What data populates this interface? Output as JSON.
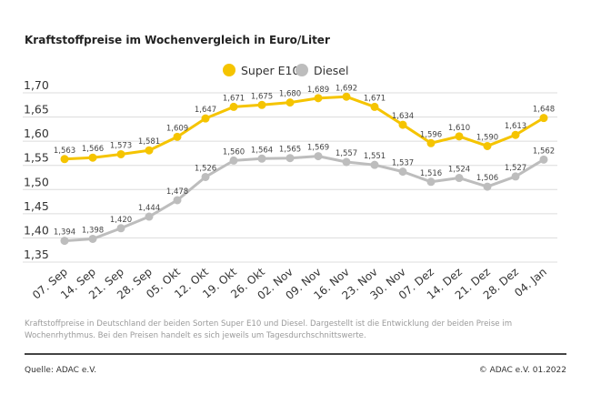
{
  "title": "Kraftstoffpreise im Wochenvergleich in Euro/Liter",
  "caption": "Kraftstoffpreise in Deutschland der beiden Sorten Super E10 und Diesel. Dargestellt ist die Entwicklung der beiden Preise im Wochenrhythmus. Bei den Preisen handelt es sich jeweils um Tagesdurchschnittswerte.",
  "source": "Quelle: ADAC e.V.",
  "copyright": "© ADAC e.V. 01.2022",
  "chart_data": {
    "type": "line",
    "title": "Kraftstoffpreise im Wochenvergleich in Euro/Liter",
    "categories": [
      "07. Sep",
      "14. Sep",
      "21. Sep",
      "28. Sep",
      "05. Okt",
      "12. Okt",
      "19. Okt",
      "26. Okt",
      "02. Nov",
      "09. Nov",
      "16. Nov",
      "23. Nov",
      "30. Nov",
      "07. Dez",
      "14. Dez",
      "21. Dez",
      "28. Dez",
      "04. Jan"
    ],
    "series": [
      {
        "name": "Super E10",
        "color": "#f5c400",
        "values": [
          1.563,
          1.566,
          1.573,
          1.581,
          1.609,
          1.647,
          1.671,
          1.675,
          1.68,
          1.689,
          1.692,
          1.671,
          1.634,
          1.596,
          1.61,
          1.59,
          1.613,
          1.648
        ]
      },
      {
        "name": "Diesel",
        "color": "#bdbdbd",
        "values": [
          1.394,
          1.398,
          1.42,
          1.444,
          1.478,
          1.526,
          1.56,
          1.564,
          1.565,
          1.569,
          1.557,
          1.551,
          1.537,
          1.516,
          1.524,
          1.506,
          1.527,
          1.562
        ]
      }
    ],
    "yticks": [
      "1,70",
      "1,65",
      "1,60",
      "1,55",
      "1,50",
      "1,45",
      "1,40",
      "1,35"
    ],
    "ylim": [
      1.35,
      1.7
    ],
    "grid": true,
    "legend_placement": "top-center",
    "decimal_separator": ","
  }
}
